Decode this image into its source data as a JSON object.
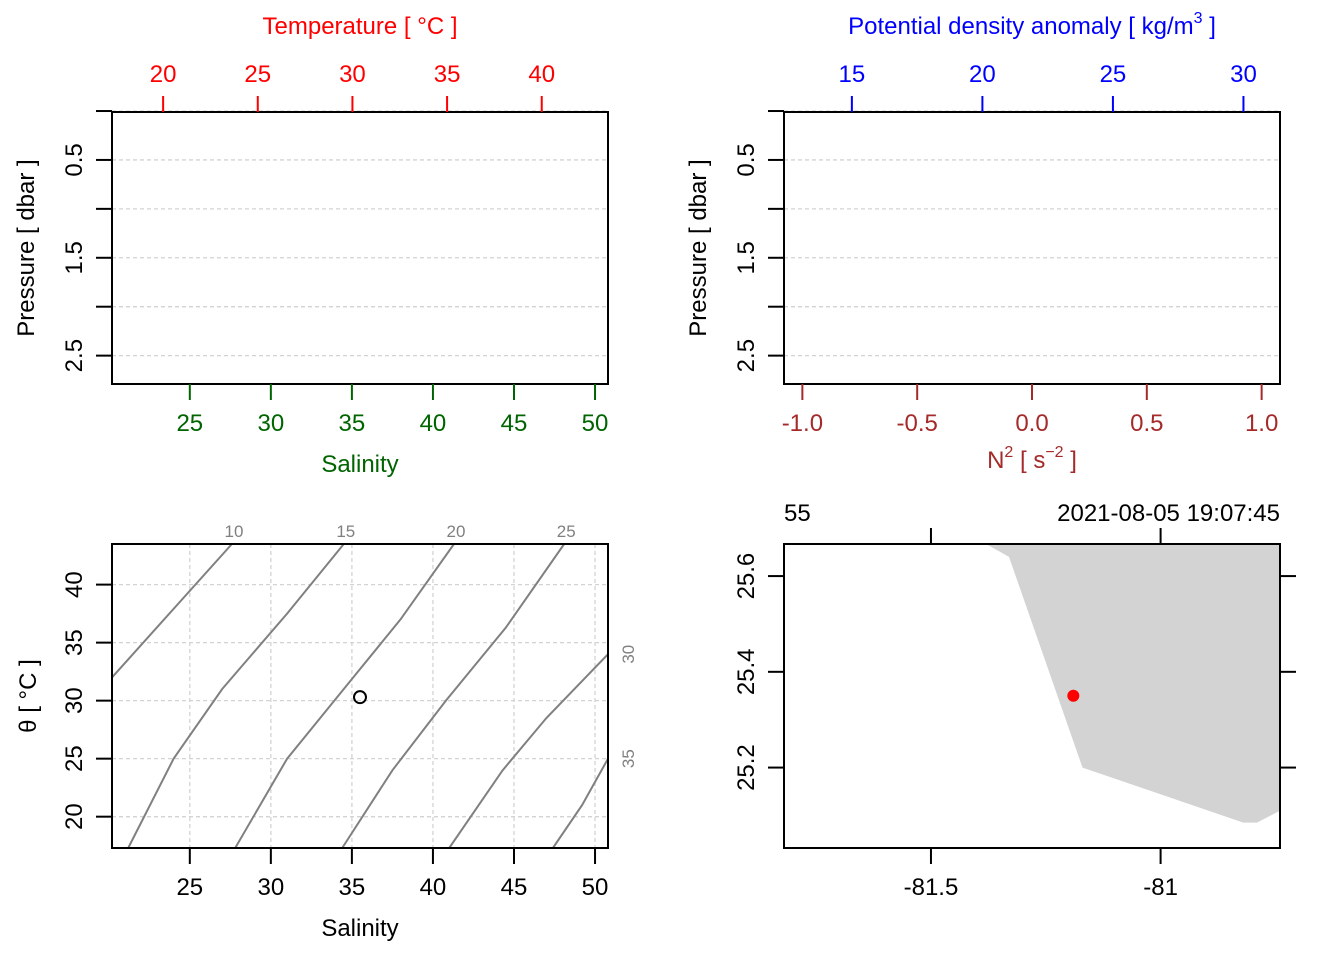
{
  "colors": {
    "temperature": "#ff0000",
    "salinity": "#006400",
    "density": "#0000ff",
    "n2": "#a52a2a",
    "grid": "#d3d3d3",
    "isopycnal": "#808080",
    "land": "#d3d3d3",
    "station": "#ff0000",
    "axis": "#000000"
  },
  "chart_data": [
    {
      "type": "line",
      "panel": "profile-temperature-salinity",
      "top_axis": {
        "label": "Temperature [ °C ]",
        "ticks": [
          20,
          25,
          30,
          35,
          40
        ],
        "range": [
          17.3,
          43.5
        ]
      },
      "bottom_axis": {
        "label": "Salinity",
        "ticks": [
          25,
          30,
          35,
          40,
          45,
          50
        ],
        "range": [
          20.2,
          50.8
        ]
      },
      "left_axis": {
        "label": "Pressure [ dbar ]",
        "ticks": [
          0.5,
          1.5,
          2.5
        ],
        "range": [
          2.79,
          0.01
        ],
        "reversed": true
      },
      "grid": true,
      "series": []
    },
    {
      "type": "line",
      "panel": "profile-density-n2",
      "top_axis": {
        "label": "Potential density anomaly [ kg/m3 ]",
        "ticks": [
          15,
          20,
          25,
          30
        ],
        "range": [
          12.4,
          31.4
        ]
      },
      "bottom_axis": {
        "label": "N2 [ s-2 ]",
        "ticks": [
          "-1.0",
          "-0.5",
          "0.0",
          "0.5",
          "1.0"
        ],
        "range": [
          -1.08,
          1.08
        ]
      },
      "left_axis": {
        "label": "Pressure [ dbar ]",
        "ticks": [
          0.5,
          1.5,
          2.5
        ],
        "range": [
          2.79,
          0.01
        ],
        "reversed": true
      },
      "grid": true,
      "series": []
    },
    {
      "type": "scatter",
      "panel": "ts-diagram",
      "xlabel": "Salinity",
      "ylabel": "θ [ °C ]",
      "xticks": [
        25,
        30,
        35,
        40,
        45,
        50
      ],
      "yticks": [
        20,
        25,
        30,
        35,
        40
      ],
      "xlim": [
        20.2,
        50.8
      ],
      "ylim": [
        17.3,
        43.5
      ],
      "grid": true,
      "points": [
        {
          "x": 35.5,
          "y": 30.3
        }
      ],
      "isopycnal_labels": [
        "10",
        "15",
        "20",
        "25",
        "30",
        "35"
      ],
      "isopycnals": [
        [
          [
            20.2,
            32.0
          ],
          [
            27.6,
            43.5
          ]
        ],
        [
          [
            21.2,
            17.3
          ],
          [
            24.0,
            25.0
          ],
          [
            27.0,
            31.0
          ],
          [
            31.0,
            37.5
          ],
          [
            34.5,
            43.5
          ]
        ],
        [
          [
            27.8,
            17.3
          ],
          [
            31.0,
            25.0
          ],
          [
            34.5,
            31.0
          ],
          [
            38.0,
            37.0
          ],
          [
            41.3,
            43.5
          ]
        ],
        [
          [
            34.4,
            17.3
          ],
          [
            37.5,
            24.0
          ],
          [
            40.8,
            30.0
          ],
          [
            44.5,
            36.3
          ],
          [
            48.1,
            43.5
          ]
        ],
        [
          [
            41.0,
            17.3
          ],
          [
            44.3,
            24.0
          ],
          [
            47.0,
            28.5
          ],
          [
            50.8,
            34.0
          ]
        ],
        [
          [
            47.4,
            17.3
          ],
          [
            49.2,
            21.0
          ],
          [
            50.8,
            25.0
          ]
        ]
      ]
    },
    {
      "type": "scatter",
      "panel": "station-map",
      "header_left": "55",
      "header_right": "2021-08-05 19:07:45",
      "xticks": [
        "-81.5",
        "-81"
      ],
      "yticks": [
        "25.2",
        "25.4",
        "25.6"
      ],
      "xlim": [
        -81.82,
        -80.74
      ],
      "ylim": [
        25.032,
        25.667
      ],
      "station": {
        "lon": -81.19,
        "lat": 25.35
      },
      "coastline": [
        [
          -81.38,
          25.667
        ],
        [
          -81.33,
          25.64
        ],
        [
          -81.17,
          25.2
        ],
        [
          -80.82,
          25.085
        ],
        [
          -80.79,
          25.085
        ],
        [
          -80.74,
          25.11
        ],
        [
          -80.74,
          25.667
        ]
      ]
    }
  ]
}
